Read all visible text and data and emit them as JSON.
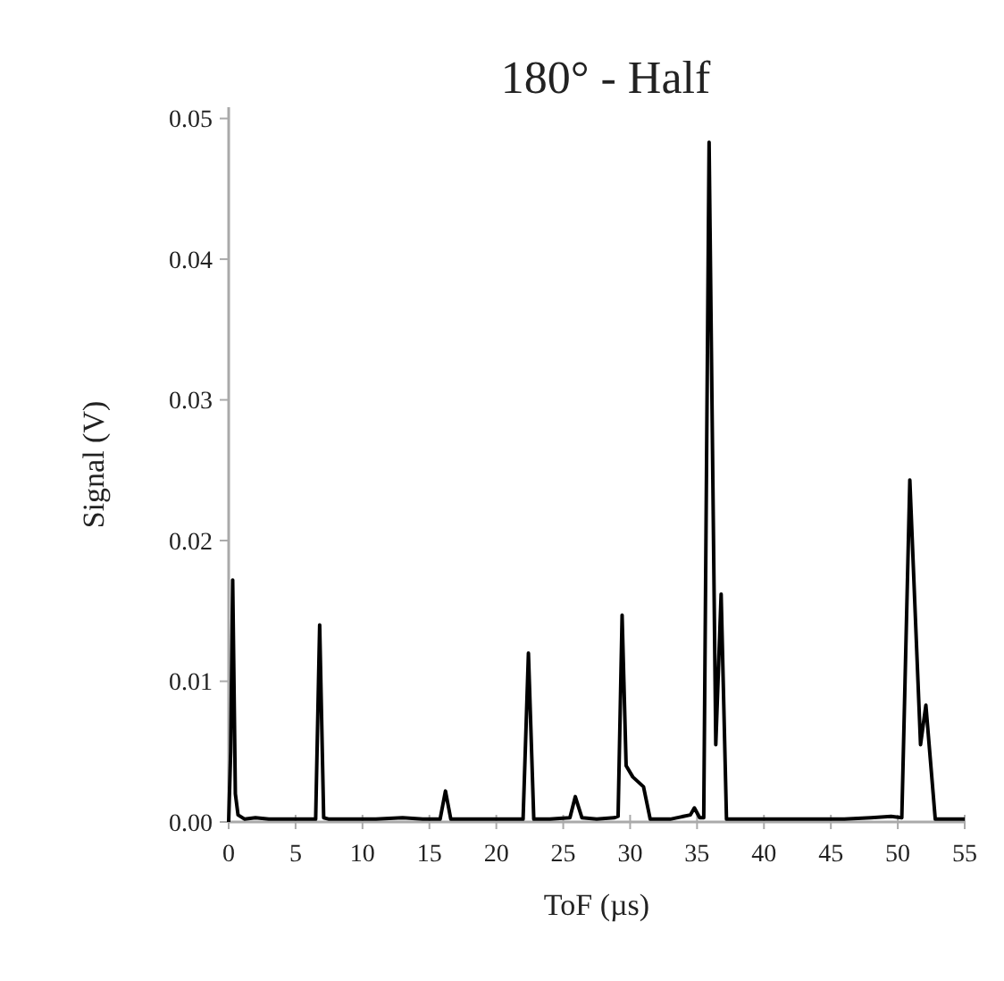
{
  "chart_data": {
    "type": "line",
    "title": "180° - Half",
    "xlabel": "ToF (µs)",
    "ylabel": "Signal  (V)",
    "xlim": [
      0,
      55
    ],
    "ylim": [
      0,
      0.0508
    ],
    "xticks": [
      0,
      5,
      10,
      15,
      20,
      25,
      30,
      35,
      40,
      45,
      50,
      55
    ],
    "yticks": [
      {
        "value": 0,
        "label": "0.00"
      },
      {
        "value": 0.01,
        "label": "0.01"
      },
      {
        "value": 0.02,
        "label": "0.02"
      },
      {
        "value": 0.03,
        "label": "0.03"
      },
      {
        "value": 0.04,
        "label": "0.04"
      },
      {
        "value": 0.05,
        "label": "0.05"
      }
    ],
    "grid": false,
    "marker": "none",
    "line_style": "solid",
    "series": [
      {
        "color": "#000000",
        "x": [
          0,
          0.15,
          0.3,
          0.5,
          0.7,
          1.2,
          2,
          3,
          4,
          5,
          6,
          6.5,
          6.8,
          7.1,
          7.5,
          9,
          11,
          13,
          14.5,
          15.8,
          16.2,
          16.6,
          18,
          20,
          22,
          22.4,
          22.8,
          24,
          25.5,
          25.9,
          26.4,
          27.5,
          28.8,
          29.1,
          29.4,
          29.7,
          30.2,
          31,
          31.5,
          33,
          34.5,
          34.8,
          35.2,
          35.5,
          35.9,
          36.4,
          36.8,
          37.2,
          38,
          40,
          43,
          46,
          48,
          49.5,
          50.3,
          50.9,
          51.7,
          52.1,
          52.8,
          54,
          55
        ],
        "values": [
          0,
          0.005,
          0.0172,
          0.002,
          0.0005,
          0.0002,
          0.0003,
          0.0002,
          0.0002,
          0.0002,
          0.0002,
          0.0002,
          0.014,
          0.0003,
          0.0002,
          0.0002,
          0.0002,
          0.0003,
          0.0002,
          0.0002,
          0.0022,
          0.0002,
          0.0002,
          0.0002,
          0.0002,
          0.012,
          0.0002,
          0.0002,
          0.0003,
          0.0018,
          0.0003,
          0.0002,
          0.0003,
          0.0004,
          0.0147,
          0.004,
          0.0032,
          0.0025,
          0.0002,
          0.0002,
          0.0005,
          0.001,
          0.0003,
          0.0003,
          0.0483,
          0.0055,
          0.0162,
          0.0002,
          0.0002,
          0.0002,
          0.0002,
          0.0002,
          0.0003,
          0.0004,
          0.0003,
          0.0243,
          0.0055,
          0.0083,
          0.0002,
          0.0002,
          0.0002
        ]
      }
    ]
  }
}
